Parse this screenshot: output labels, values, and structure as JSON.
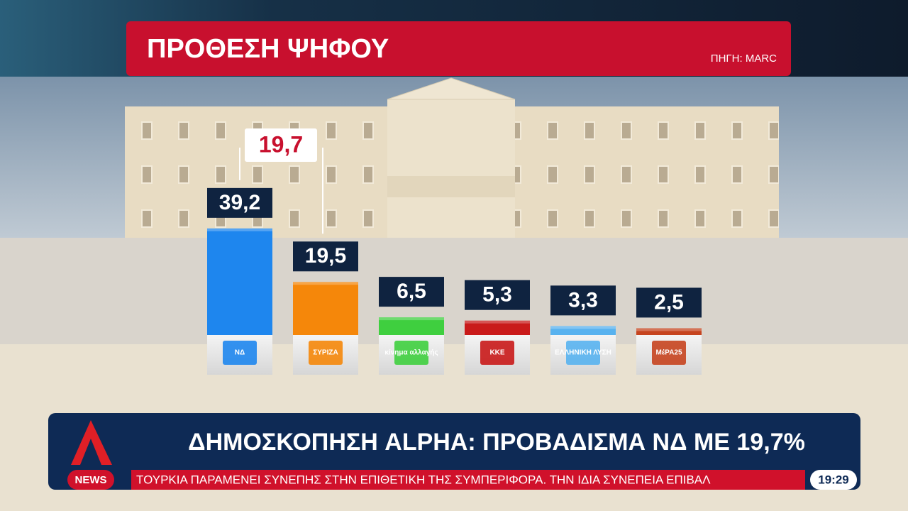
{
  "chart_data": {
    "type": "bar",
    "title": "ΠΡΟΘΕΣΗ ΨΗΦΟΥ",
    "source": "ΠΗΓΗ: MARC",
    "categories": [
      "ΝΔ",
      "ΣΥΡΙΖΑ",
      "κίνημα αλλαγής",
      "ΚΚΕ",
      "ΕΛΛΗΝΙΚΗ ΛΥΣΗ",
      "ΜέΡΑ25"
    ],
    "values": [
      39.2,
      19.5,
      6.5,
      5.3,
      3.3,
      2.5
    ],
    "value_labels": [
      "39,2",
      "19,5",
      "6,5",
      "5,3",
      "3,3",
      "2,5"
    ],
    "colors": [
      "#1e86ee",
      "#f5870a",
      "#3fcf3f",
      "#c91a1a",
      "#58b2ef",
      "#c6441f"
    ],
    "annotation": {
      "value": 19.7,
      "label": "19,7"
    }
  },
  "banner": {
    "headline": "ΔΗΜΟΣΚΟΠΗΣΗ ALPHA: ΠΡΟΒΑΔΙΣΜΑ ΝΔ ΜΕ 19,7%",
    "ticker": "ΤΟΥΡΚΙΑ ΠΑΡΑΜΕΝΕΙ ΣΥΝΕΠΗΣ ΣΤΗΝ ΕΠΙΘΕΤΙΚΗ ΤΗΣ ΣΥΜΠΕΡΙΦΟΡΑ. ΤΗΝ ΙΔΙΑ ΣΥΝΕΠΕΙΑ ΕΠΙΒΑΛ",
    "news": "NEWS",
    "clock": "19:29"
  }
}
